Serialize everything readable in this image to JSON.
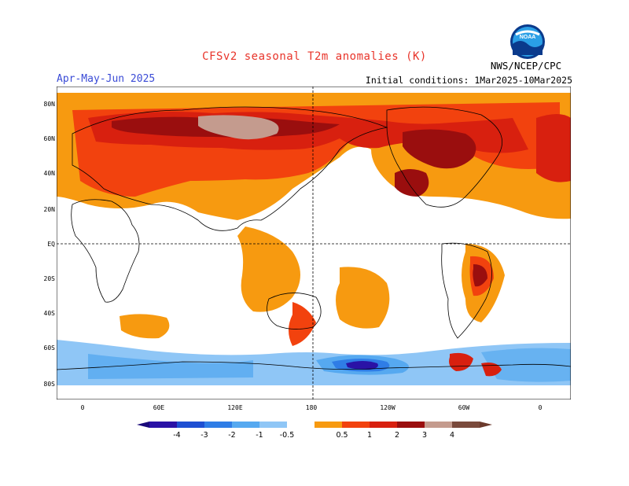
{
  "header": {
    "title": "CFSv2 seasonal T2m anomalies (K)",
    "season": "Apr-May-Jun 2025",
    "initial_conditions": "Initial conditions: 1Mar2025-10Mar2025",
    "agency": "NWS/NCEP/CPC",
    "logo_text": "NOAA"
  },
  "map": {
    "lat_labels": [
      "80N",
      "60N",
      "40N",
      "20N",
      "EQ",
      "20S",
      "40S",
      "60S",
      "80S"
    ],
    "lon_labels": [
      "0",
      "60E",
      "120E",
      "180",
      "120W",
      "60W",
      "0"
    ],
    "projection": "equirectangular",
    "reference_lines": [
      "equator",
      "dateline"
    ]
  },
  "colorbar": {
    "tick_labels": [
      "-4",
      "-3",
      "-2",
      "-1",
      "-0.5",
      "0.5",
      "1",
      "2",
      "3",
      "4"
    ],
    "colors": [
      "#2a12a6",
      "#1e4fd2",
      "#2f7de6",
      "#56a9f0",
      "#8fc6f6",
      "#ffffff",
      "#f79a10",
      "#f2420e",
      "#d8200f",
      "#9a0e0e",
      "#c49b8e",
      "#7a4a3c"
    ],
    "end_colors": {
      "low": "#1a0a7a",
      "high": "#6b3a2c"
    }
  },
  "legend_colors": {
    "warm_1": "#f79a10",
    "warm_2": "#f2420e",
    "warm_3": "#d8200f",
    "warm_4": "#9a0e0e",
    "warm_5": "#c49b8e",
    "cool_1": "#8fc6f6",
    "cool_2": "#56a9f0",
    "cool_3": "#2f7de6",
    "cool_4": "#2a12a6"
  }
}
